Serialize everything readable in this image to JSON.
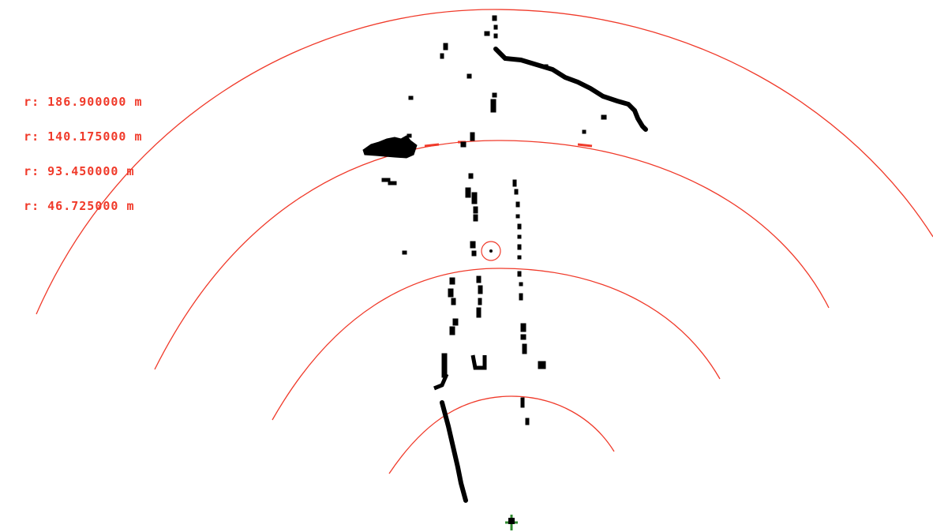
{
  "colors": {
    "ring": "#f03a2a",
    "point": "#000000",
    "label": "#f03a2a",
    "sensor": "#2f8a2f",
    "background": "#ffffff"
  },
  "range_labels": [
    {
      "text": "r: 186.900000 m"
    },
    {
      "text": "r: 140.175000 m"
    },
    {
      "text": "r: 93.450000 m"
    },
    {
      "text": "r: 46.725000 m"
    }
  ],
  "icons": {
    "target_marker": "circle-target-icon",
    "sensor_origin": "sensor-origin-icon"
  }
}
